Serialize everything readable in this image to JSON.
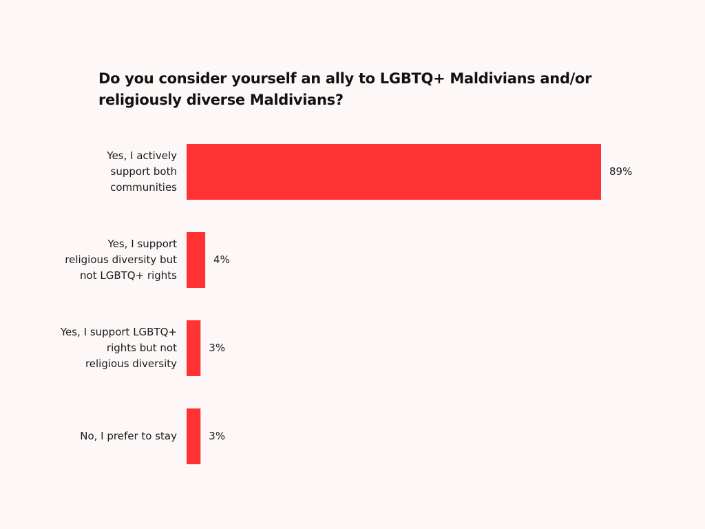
{
  "chart_data": {
    "type": "bar",
    "orientation": "horizontal",
    "title": "Do you consider yourself an ally to LGBTQ+ Maldivians and/or religiously diverse Maldivians?",
    "categories": [
      [
        "Yes, I actively",
        "support both",
        "communities"
      ],
      [
        "Yes, I support",
        "religious diversity but",
        "not LGBTQ+ rights"
      ],
      [
        "Yes, I support LGBTQ+",
        "rights but not",
        "religious diversity"
      ],
      [
        "No, I prefer to stay"
      ]
    ],
    "values": [
      89,
      4,
      3,
      3
    ],
    "value_labels": [
      "89%",
      "4%",
      "3%",
      "3%"
    ],
    "unit": "%",
    "xlim": [
      0,
      100
    ],
    "bar_color": "#ff3333",
    "grid": false,
    "legend": "none"
  }
}
